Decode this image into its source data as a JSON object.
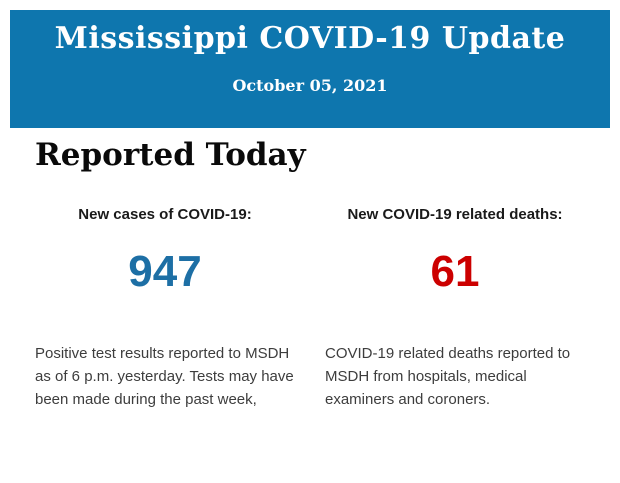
{
  "header": {
    "title": "Mississippi COVID-19 Update",
    "date": "October 05, 2021",
    "background_color": "#0e76ae",
    "text_color": "#ffffff"
  },
  "main": {
    "section_title": "Reported Today",
    "stats": [
      {
        "label": "New cases of COVID-19:",
        "value": "947",
        "value_color": "#1d6fa5",
        "description": "Positive test results reported to MSDH as of 6 p.m. yesterday. Tests may have been made during the past week,"
      },
      {
        "label": "New COVID-19 related deaths:",
        "value": "61",
        "value_color": "#cc0000",
        "description": "COVID-19 related deaths reported to MSDH from hospitals, medical examiners and coroners."
      }
    ]
  }
}
